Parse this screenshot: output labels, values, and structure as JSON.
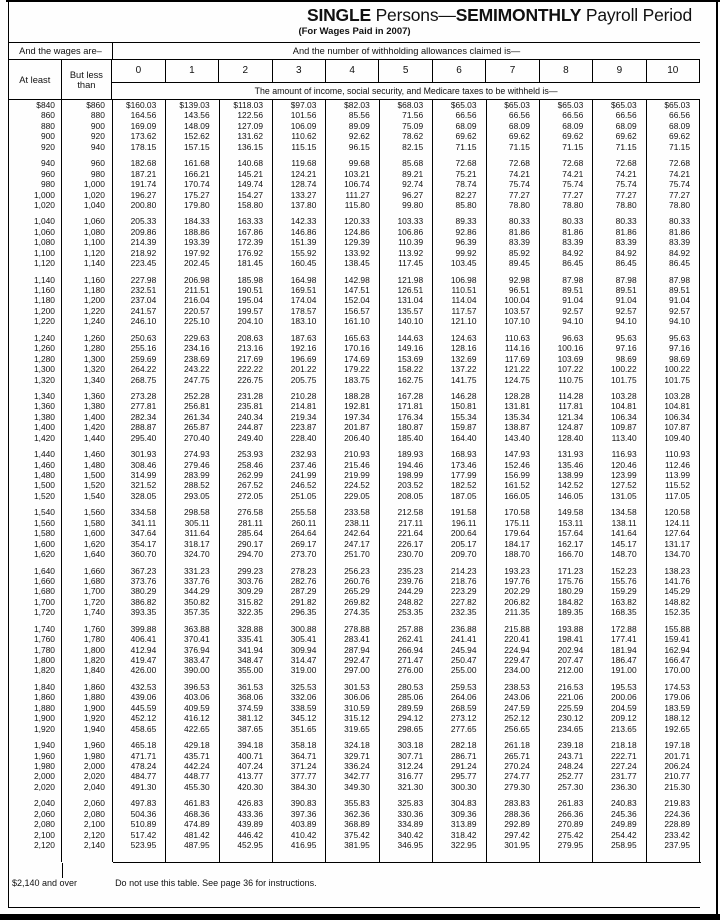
{
  "title": {
    "word1": "SINGLE",
    "word2": " Persons—",
    "word3": "SEMIMONTHLY",
    "word4": " Payroll Period",
    "subtitle": "(For Wages Paid in 2007)"
  },
  "header": {
    "wages_label": "And the wages are–",
    "allowances_label": "And the number of withholding allowances claimed is—",
    "at_least": "At least",
    "but_less_than": "But less than",
    "allowance_numbers": [
      "0",
      "1",
      "2",
      "3",
      "4",
      "5",
      "6",
      "7",
      "8",
      "9",
      "10"
    ],
    "amount_label": "The amount of income, social security, and Medicare taxes to be withheld is—"
  },
  "chart_data": {
    "type": "table",
    "title": "SINGLE Persons—SEMIMONTHLY Payroll Period (For Wages Paid in 2007)",
    "columns": [
      "At least",
      "But less than",
      "0",
      "1",
      "2",
      "3",
      "4",
      "5",
      "6",
      "7",
      "8",
      "9",
      "10"
    ]
  },
  "table": {
    "groups": [
      [
        [
          "$840",
          "$860",
          "$160.03",
          "$139.03",
          "$118.03",
          "$97.03",
          "$82.03",
          "$68.03",
          "$65.03",
          "$65.03",
          "$65.03",
          "$65.03",
          "$65.03"
        ],
        [
          "860",
          "880",
          "164.56",
          "143.56",
          "122.56",
          "101.56",
          "85.56",
          "71.56",
          "66.56",
          "66.56",
          "66.56",
          "66.56",
          "66.56"
        ],
        [
          "880",
          "900",
          "169.09",
          "148.09",
          "127.09",
          "106.09",
          "89.09",
          "75.09",
          "68.09",
          "68.09",
          "68.09",
          "68.09",
          "68.09"
        ],
        [
          "900",
          "920",
          "173.62",
          "152.62",
          "131.62",
          "110.62",
          "92.62",
          "78.62",
          "69.62",
          "69.62",
          "69.62",
          "69.62",
          "69.62"
        ],
        [
          "920",
          "940",
          "178.15",
          "157.15",
          "136.15",
          "115.15",
          "96.15",
          "82.15",
          "71.15",
          "71.15",
          "71.15",
          "71.15",
          "71.15"
        ]
      ],
      [
        [
          "940",
          "960",
          "182.68",
          "161.68",
          "140.68",
          "119.68",
          "99.68",
          "85.68",
          "72.68",
          "72.68",
          "72.68",
          "72.68",
          "72.68"
        ],
        [
          "960",
          "980",
          "187.21",
          "166.21",
          "145.21",
          "124.21",
          "103.21",
          "89.21",
          "75.21",
          "74.21",
          "74.21",
          "74.21",
          "74.21"
        ],
        [
          "980",
          "1,000",
          "191.74",
          "170.74",
          "149.74",
          "128.74",
          "106.74",
          "92.74",
          "78.74",
          "75.74",
          "75.74",
          "75.74",
          "75.74"
        ],
        [
          "1,000",
          "1,020",
          "196.27",
          "175.27",
          "154.27",
          "133.27",
          "111.27",
          "96.27",
          "82.27",
          "77.27",
          "77.27",
          "77.27",
          "77.27"
        ],
        [
          "1,020",
          "1,040",
          "200.80",
          "179.80",
          "158.80",
          "137.80",
          "115.80",
          "99.80",
          "85.80",
          "78.80",
          "78.80",
          "78.80",
          "78.80"
        ]
      ],
      [
        [
          "1,040",
          "1,060",
          "205.33",
          "184.33",
          "163.33",
          "142.33",
          "120.33",
          "103.33",
          "89.33",
          "80.33",
          "80.33",
          "80.33",
          "80.33"
        ],
        [
          "1,060",
          "1,080",
          "209.86",
          "188.86",
          "167.86",
          "146.86",
          "124.86",
          "106.86",
          "92.86",
          "81.86",
          "81.86",
          "81.86",
          "81.86"
        ],
        [
          "1,080",
          "1,100",
          "214.39",
          "193.39",
          "172.39",
          "151.39",
          "129.39",
          "110.39",
          "96.39",
          "83.39",
          "83.39",
          "83.39",
          "83.39"
        ],
        [
          "1,100",
          "1,120",
          "218.92",
          "197.92",
          "176.92",
          "155.92",
          "133.92",
          "113.92",
          "99.92",
          "85.92",
          "84.92",
          "84.92",
          "84.92"
        ],
        [
          "1,120",
          "1,140",
          "223.45",
          "202.45",
          "181.45",
          "160.45",
          "138.45",
          "117.45",
          "103.45",
          "89.45",
          "86.45",
          "86.45",
          "86.45"
        ]
      ],
      [
        [
          "1,140",
          "1,160",
          "227.98",
          "206.98",
          "185.98",
          "164.98",
          "142.98",
          "121.98",
          "106.98",
          "92.98",
          "87.98",
          "87.98",
          "87.98"
        ],
        [
          "1,160",
          "1,180",
          "232.51",
          "211.51",
          "190.51",
          "169.51",
          "147.51",
          "126.51",
          "110.51",
          "96.51",
          "89.51",
          "89.51",
          "89.51"
        ],
        [
          "1,180",
          "1,200",
          "237.04",
          "216.04",
          "195.04",
          "174.04",
          "152.04",
          "131.04",
          "114.04",
          "100.04",
          "91.04",
          "91.04",
          "91.04"
        ],
        [
          "1,200",
          "1,220",
          "241.57",
          "220.57",
          "199.57",
          "178.57",
          "156.57",
          "135.57",
          "117.57",
          "103.57",
          "92.57",
          "92.57",
          "92.57"
        ],
        [
          "1,220",
          "1,240",
          "246.10",
          "225.10",
          "204.10",
          "183.10",
          "161.10",
          "140.10",
          "121.10",
          "107.10",
          "94.10",
          "94.10",
          "94.10"
        ]
      ],
      [
        [
          "1,240",
          "1,260",
          "250.63",
          "229.63",
          "208.63",
          "187.63",
          "165.63",
          "144.63",
          "124.63",
          "110.63",
          "96.63",
          "95.63",
          "95.63"
        ],
        [
          "1,260",
          "1,280",
          "255.16",
          "234.16",
          "213.16",
          "192.16",
          "170.16",
          "149.16",
          "128.16",
          "114.16",
          "100.16",
          "97.16",
          "97.16"
        ],
        [
          "1,280",
          "1,300",
          "259.69",
          "238.69",
          "217.69",
          "196.69",
          "174.69",
          "153.69",
          "132.69",
          "117.69",
          "103.69",
          "98.69",
          "98.69"
        ],
        [
          "1,300",
          "1,320",
          "264.22",
          "243.22",
          "222.22",
          "201.22",
          "179.22",
          "158.22",
          "137.22",
          "121.22",
          "107.22",
          "100.22",
          "100.22"
        ],
        [
          "1,320",
          "1,340",
          "268.75",
          "247.75",
          "226.75",
          "205.75",
          "183.75",
          "162.75",
          "141.75",
          "124.75",
          "110.75",
          "101.75",
          "101.75"
        ]
      ],
      [
        [
          "1,340",
          "1,360",
          "273.28",
          "252.28",
          "231.28",
          "210.28",
          "188.28",
          "167.28",
          "146.28",
          "128.28",
          "114.28",
          "103.28",
          "103.28"
        ],
        [
          "1,360",
          "1,380",
          "277.81",
          "256.81",
          "235.81",
          "214.81",
          "192.81",
          "171.81",
          "150.81",
          "131.81",
          "117.81",
          "104.81",
          "104.81"
        ],
        [
          "1,380",
          "1,400",
          "282.34",
          "261.34",
          "240.34",
          "219.34",
          "197.34",
          "176.34",
          "155.34",
          "135.34",
          "121.34",
          "106.34",
          "106.34"
        ],
        [
          "1,400",
          "1,420",
          "288.87",
          "265.87",
          "244.87",
          "223.87",
          "201.87",
          "180.87",
          "159.87",
          "138.87",
          "124.87",
          "109.87",
          "107.87"
        ],
        [
          "1,420",
          "1,440",
          "295.40",
          "270.40",
          "249.40",
          "228.40",
          "206.40",
          "185.40",
          "164.40",
          "143.40",
          "128.40",
          "113.40",
          "109.40"
        ]
      ],
      [
        [
          "1,440",
          "1,460",
          "301.93",
          "274.93",
          "253.93",
          "232.93",
          "210.93",
          "189.93",
          "168.93",
          "147.93",
          "131.93",
          "116.93",
          "110.93"
        ],
        [
          "1,460",
          "1,480",
          "308.46",
          "279.46",
          "258.46",
          "237.46",
          "215.46",
          "194.46",
          "173.46",
          "152.46",
          "135.46",
          "120.46",
          "112.46"
        ],
        [
          "1,480",
          "1,500",
          "314.99",
          "283.99",
          "262.99",
          "241.99",
          "219.99",
          "198.99",
          "177.99",
          "156.99",
          "138.99",
          "123.99",
          "113.99"
        ],
        [
          "1,500",
          "1,520",
          "321.52",
          "288.52",
          "267.52",
          "246.52",
          "224.52",
          "203.52",
          "182.52",
          "161.52",
          "142.52",
          "127.52",
          "115.52"
        ],
        [
          "1,520",
          "1,540",
          "328.05",
          "293.05",
          "272.05",
          "251.05",
          "229.05",
          "208.05",
          "187.05",
          "166.05",
          "146.05",
          "131.05",
          "117.05"
        ]
      ],
      [
        [
          "1,540",
          "1,560",
          "334.58",
          "298.58",
          "276.58",
          "255.58",
          "233.58",
          "212.58",
          "191.58",
          "170.58",
          "149.58",
          "134.58",
          "120.58"
        ],
        [
          "1,560",
          "1,580",
          "341.11",
          "305.11",
          "281.11",
          "260.11",
          "238.11",
          "217.11",
          "196.11",
          "175.11",
          "153.11",
          "138.11",
          "124.11"
        ],
        [
          "1,580",
          "1,600",
          "347.64",
          "311.64",
          "285.64",
          "264.64",
          "242.64",
          "221.64",
          "200.64",
          "179.64",
          "157.64",
          "141.64",
          "127.64"
        ],
        [
          "1,600",
          "1,620",
          "354.17",
          "318.17",
          "290.17",
          "269.17",
          "247.17",
          "226.17",
          "205.17",
          "184.17",
          "162.17",
          "145.17",
          "131.17"
        ],
        [
          "1,620",
          "1,640",
          "360.70",
          "324.70",
          "294.70",
          "273.70",
          "251.70",
          "230.70",
          "209.70",
          "188.70",
          "166.70",
          "148.70",
          "134.70"
        ]
      ],
      [
        [
          "1,640",
          "1,660",
          "367.23",
          "331.23",
          "299.23",
          "278.23",
          "256.23",
          "235.23",
          "214.23",
          "193.23",
          "171.23",
          "152.23",
          "138.23"
        ],
        [
          "1,660",
          "1,680",
          "373.76",
          "337.76",
          "303.76",
          "282.76",
          "260.76",
          "239.76",
          "218.76",
          "197.76",
          "175.76",
          "155.76",
          "141.76"
        ],
        [
          "1,680",
          "1,700",
          "380.29",
          "344.29",
          "309.29",
          "287.29",
          "265.29",
          "244.29",
          "223.29",
          "202.29",
          "180.29",
          "159.29",
          "145.29"
        ],
        [
          "1,700",
          "1,720",
          "386.82",
          "350.82",
          "315.82",
          "291.82",
          "269.82",
          "248.82",
          "227.82",
          "206.82",
          "184.82",
          "163.82",
          "148.82"
        ],
        [
          "1,720",
          "1,740",
          "393.35",
          "357.35",
          "322.35",
          "296.35",
          "274.35",
          "253.35",
          "232.35",
          "211.35",
          "189.35",
          "168.35",
          "152.35"
        ]
      ],
      [
        [
          "1,740",
          "1,760",
          "399.88",
          "363.88",
          "328.88",
          "300.88",
          "278.88",
          "257.88",
          "236.88",
          "215.88",
          "193.88",
          "172.88",
          "155.88"
        ],
        [
          "1,760",
          "1,780",
          "406.41",
          "370.41",
          "335.41",
          "305.41",
          "283.41",
          "262.41",
          "241.41",
          "220.41",
          "198.41",
          "177.41",
          "159.41"
        ],
        [
          "1,780",
          "1,800",
          "412.94",
          "376.94",
          "341.94",
          "309.94",
          "287.94",
          "266.94",
          "245.94",
          "224.94",
          "202.94",
          "181.94",
          "162.94"
        ],
        [
          "1,800",
          "1,820",
          "419.47",
          "383.47",
          "348.47",
          "314.47",
          "292.47",
          "271.47",
          "250.47",
          "229.47",
          "207.47",
          "186.47",
          "166.47"
        ],
        [
          "1,820",
          "1,840",
          "426.00",
          "390.00",
          "355.00",
          "319.00",
          "297.00",
          "276.00",
          "255.00",
          "234.00",
          "212.00",
          "191.00",
          "170.00"
        ]
      ],
      [
        [
          "1,840",
          "1,860",
          "432.53",
          "396.53",
          "361.53",
          "325.53",
          "301.53",
          "280.53",
          "259.53",
          "238.53",
          "216.53",
          "195.53",
          "174.53"
        ],
        [
          "1,860",
          "1,880",
          "439.06",
          "403.06",
          "368.06",
          "332.06",
          "306.06",
          "285.06",
          "264.06",
          "243.06",
          "221.06",
          "200.06",
          "179.06"
        ],
        [
          "1,880",
          "1,900",
          "445.59",
          "409.59",
          "374.59",
          "338.59",
          "310.59",
          "289.59",
          "268.59",
          "247.59",
          "225.59",
          "204.59",
          "183.59"
        ],
        [
          "1,900",
          "1,920",
          "452.12",
          "416.12",
          "381.12",
          "345.12",
          "315.12",
          "294.12",
          "273.12",
          "252.12",
          "230.12",
          "209.12",
          "188.12"
        ],
        [
          "1,920",
          "1,940",
          "458.65",
          "422.65",
          "387.65",
          "351.65",
          "319.65",
          "298.65",
          "277.65",
          "256.65",
          "234.65",
          "213.65",
          "192.65"
        ]
      ],
      [
        [
          "1,940",
          "1,960",
          "465.18",
          "429.18",
          "394.18",
          "358.18",
          "324.18",
          "303.18",
          "282.18",
          "261.18",
          "239.18",
          "218.18",
          "197.18"
        ],
        [
          "1,960",
          "1,980",
          "471.71",
          "435.71",
          "400.71",
          "364.71",
          "329.71",
          "307.71",
          "286.71",
          "265.71",
          "243.71",
          "222.71",
          "201.71"
        ],
        [
          "1,980",
          "2,000",
          "478.24",
          "442.24",
          "407.24",
          "371.24",
          "336.24",
          "312.24",
          "291.24",
          "270.24",
          "248.24",
          "227.24",
          "206.24"
        ],
        [
          "2,000",
          "2,020",
          "484.77",
          "448.77",
          "413.77",
          "377.77",
          "342.77",
          "316.77",
          "295.77",
          "274.77",
          "252.77",
          "231.77",
          "210.77"
        ],
        [
          "2,020",
          "2,040",
          "491.30",
          "455.30",
          "420.30",
          "384.30",
          "349.30",
          "321.30",
          "300.30",
          "279.30",
          "257.30",
          "236.30",
          "215.30"
        ]
      ],
      [
        [
          "2,040",
          "2,060",
          "497.83",
          "461.83",
          "426.83",
          "390.83",
          "355.83",
          "325.83",
          "304.83",
          "283.83",
          "261.83",
          "240.83",
          "219.83"
        ],
        [
          "2,060",
          "2,080",
          "504.36",
          "468.36",
          "433.36",
          "397.36",
          "362.36",
          "330.36",
          "309.36",
          "288.36",
          "266.36",
          "245.36",
          "224.36"
        ],
        [
          "2,080",
          "2,100",
          "510.89",
          "474.89",
          "439.89",
          "403.89",
          "368.89",
          "334.89",
          "313.89",
          "292.89",
          "270.89",
          "249.89",
          "228.89"
        ],
        [
          "2,100",
          "2,120",
          "517.42",
          "481.42",
          "446.42",
          "410.42",
          "375.42",
          "340.42",
          "318.42",
          "297.42",
          "275.42",
          "254.42",
          "233.42"
        ],
        [
          "2,120",
          "2,140",
          "523.95",
          "487.95",
          "452.95",
          "416.95",
          "381.95",
          "346.95",
          "322.95",
          "301.95",
          "279.95",
          "258.95",
          "237.95"
        ]
      ]
    ]
  },
  "footer": {
    "over_label": "$2,140 and over",
    "instruction": "Do not use this table. See page 36 for instructions."
  }
}
